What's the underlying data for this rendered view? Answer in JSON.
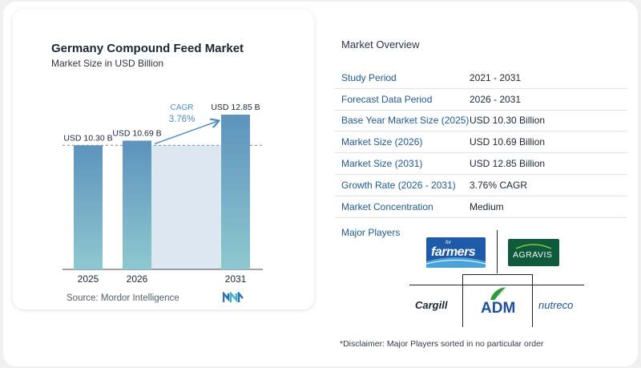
{
  "chart_data": {
    "type": "bar",
    "title": "Germany Compound Feed Market",
    "subtitle": "Market Size in USD Billion",
    "categories": [
      "2025",
      "2026",
      "2031"
    ],
    "values": [
      10.3,
      10.69,
      12.85
    ],
    "data_labels": [
      "USD 10.30 B",
      "USD 10.69 B",
      "USD 12.85 B"
    ],
    "cagr_label": "CAGR",
    "cagr_value": "3.76%",
    "ylim": [
      0,
      13
    ],
    "grid": false,
    "bar_color_top": "#5d93bd",
    "bar_color_bottom": "#8ec8cf"
  },
  "source": "Source:  Mordor Intelligence",
  "overview": {
    "title": "Market Overview",
    "rows": [
      {
        "label": "Study Period",
        "value": "2021 - 2031"
      },
      {
        "label": "Forecast Data Period",
        "value": "2026 - 2031"
      },
      {
        "label": "Base Year Market Size (2025)",
        "value": "USD 10.30 Billion"
      },
      {
        "label": "Market Size (2026)",
        "value": "USD 10.69 Billion"
      },
      {
        "label": "Market Size (2031)",
        "value": "USD 12.85 Billion"
      },
      {
        "label": "Growth Rate (2026 - 2031)",
        "value": "3.76% CAGR"
      },
      {
        "label": "Market Concentration",
        "value": "Medium"
      }
    ]
  },
  "players": {
    "label": "Major Players",
    "logos": [
      {
        "icon": "farmers-logo",
        "text": "farmers",
        "small": "for",
        "bg": "#1f5aa8"
      },
      {
        "icon": "agravis-logo",
        "text": "AGRAVIS",
        "bg": "#0e5a3c"
      },
      {
        "icon": "cargill-logo",
        "text": "Cargill"
      },
      {
        "icon": "adm-logo",
        "text": "ADM"
      },
      {
        "icon": "nutreco-logo",
        "text": "nutreco"
      }
    ]
  },
  "disclaimer": "*Disclaimer: Major Players sorted in no particular order"
}
